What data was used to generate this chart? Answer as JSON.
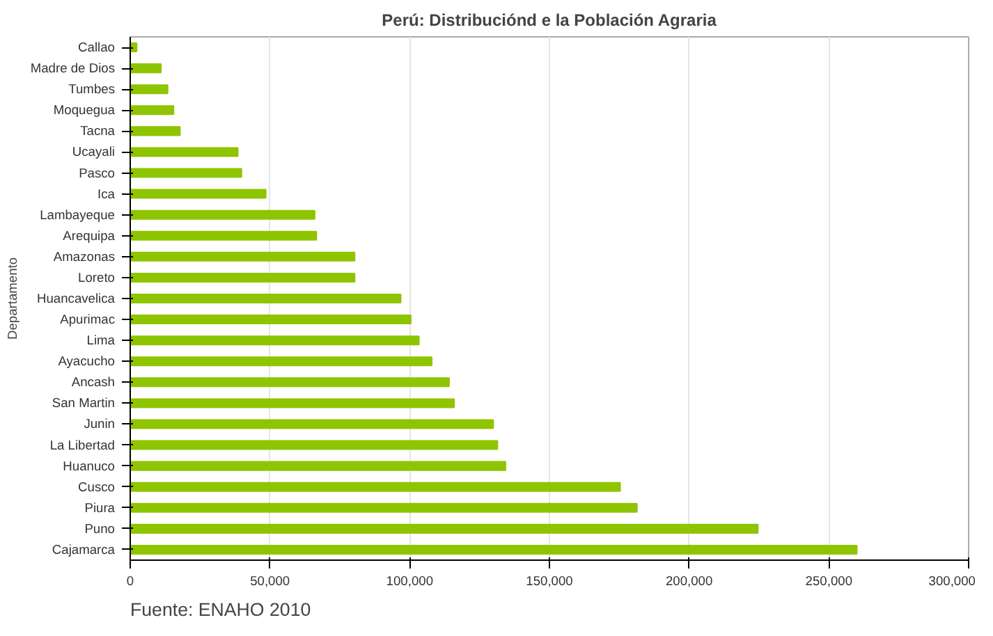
{
  "chart_data": {
    "type": "bar",
    "orientation": "horizontal",
    "title": "Perú: Distribuciónd e la Población Agraria",
    "ylabel": "Departamento",
    "categories": [
      "Callao",
      "Madre de Dios",
      "Tumbes",
      "Moquegua",
      "Tacna",
      "Ucayali",
      "Pasco",
      "Ica",
      "Lambayeque",
      "Arequipa",
      "Amazonas",
      "Loreto",
      "Huancavelica",
      "Apurimac",
      "Lima",
      "Ayacucho",
      "Ancash",
      "San Martin",
      "Junin",
      "La Libertad",
      "Huanuco",
      "Cusco",
      "Piura",
      "Puno",
      "Cajamarca"
    ],
    "values": [
      2300,
      11000,
      13400,
      15500,
      17800,
      38500,
      39800,
      48500,
      66000,
      66600,
      80300,
      80300,
      96800,
      100400,
      103300,
      107900,
      114100,
      115900,
      129900,
      131400,
      134300,
      175300,
      181300,
      224600,
      260000
    ],
    "color": "#8fc400",
    "xlim": [
      0,
      300000
    ],
    "xticks": [
      {
        "value": 0,
        "label": "0"
      },
      {
        "value": 50000,
        "label": "50,000"
      },
      {
        "value": 100000,
        "label": "100,000"
      },
      {
        "value": 150000,
        "label": "150,000"
      },
      {
        "value": 200000,
        "label": "200,000"
      },
      {
        "value": 250000,
        "label": "250,000"
      },
      {
        "value": 300000,
        "label": "300,000"
      }
    ],
    "grid": "x",
    "annotations": [
      "Fuente: ENAHO 2010"
    ]
  }
}
